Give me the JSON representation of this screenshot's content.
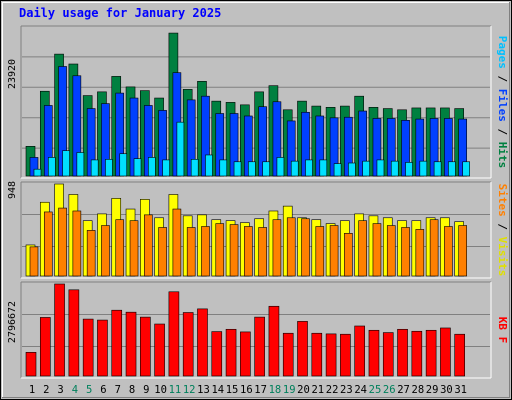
{
  "chart_data": [
    {
      "type": "bar",
      "title": "Daily usage for January 2025",
      "categories": [
        "1",
        "2",
        "3",
        "4",
        "5",
        "6",
        "7",
        "8",
        "9",
        "10",
        "11",
        "12",
        "13",
        "14",
        "15",
        "16",
        "17",
        "18",
        "19",
        "20",
        "21",
        "22",
        "23",
        "24",
        "25",
        "26",
        "27",
        "28",
        "29",
        "30",
        "31"
      ],
      "weekend_days": [
        "4",
        "5",
        "11",
        "12",
        "18",
        "19",
        "25",
        "26"
      ],
      "y_max_label": "23920",
      "ylim": [
        0,
        23920
      ],
      "legend": [
        "Pages",
        "Files",
        "Hits"
      ],
      "series": [
        {
          "name": "Hits",
          "color": "#008040",
          "values": [
            4800,
            13700,
            19700,
            18100,
            13000,
            13600,
            16100,
            14400,
            13800,
            12600,
            23100,
            14000,
            15300,
            12100,
            11900,
            11500,
            13600,
            14600,
            10700,
            12100,
            11300,
            11100,
            11300,
            12900,
            11100,
            10900,
            10700,
            11000,
            11000,
            11000,
            10900
          ]
        },
        {
          "name": "Files",
          "color": "#0040ff",
          "values": [
            3000,
            11400,
            17700,
            16200,
            10900,
            11700,
            13400,
            12600,
            11400,
            10600,
            16700,
            12300,
            12900,
            10100,
            10100,
            9700,
            11200,
            12000,
            8900,
            10300,
            9700,
            9400,
            9500,
            10500,
            9300,
            9300,
            9000,
            9200,
            9300,
            9300,
            9200
          ]
        },
        {
          "name": "Pages",
          "color": "#00e0ff",
          "values": [
            1100,
            3000,
            4100,
            3800,
            2600,
            2700,
            3600,
            2800,
            3000,
            2600,
            8700,
            2700,
            3400,
            2600,
            2300,
            2300,
            2300,
            3000,
            2400,
            2600,
            2600,
            2000,
            2100,
            2400,
            2600,
            2400,
            2200,
            2400,
            2300,
            2300,
            2300
          ]
        }
      ]
    },
    {
      "type": "bar",
      "categories": [
        "1",
        "2",
        "3",
        "4",
        "5",
        "6",
        "7",
        "8",
        "9",
        "10",
        "11",
        "12",
        "13",
        "14",
        "15",
        "16",
        "17",
        "18",
        "19",
        "20",
        "21",
        "22",
        "23",
        "24",
        "25",
        "26",
        "27",
        "28",
        "29",
        "30",
        "31"
      ],
      "y_max_label": "948",
      "ylim": [
        0,
        948
      ],
      "legend": [
        "Sites",
        "Visits"
      ],
      "series": [
        {
          "name": "Visits",
          "color": "#ffff00",
          "values": [
            320,
            760,
            948,
            840,
            570,
            640,
            800,
            690,
            790,
            600,
            840,
            620,
            630,
            580,
            570,
            550,
            590,
            670,
            720,
            600,
            580,
            540,
            570,
            640,
            620,
            600,
            570,
            570,
            600,
            600,
            560
          ]
        },
        {
          "name": "Sites",
          "color": "#ff8000",
          "values": [
            300,
            660,
            700,
            670,
            470,
            520,
            580,
            570,
            630,
            500,
            690,
            500,
            510,
            540,
            530,
            510,
            500,
            580,
            600,
            590,
            510,
            520,
            440,
            570,
            540,
            520,
            500,
            480,
            580,
            510,
            520
          ]
        }
      ]
    },
    {
      "type": "bar",
      "categories": [
        "1",
        "2",
        "3",
        "4",
        "5",
        "6",
        "7",
        "8",
        "9",
        "10",
        "11",
        "12",
        "13",
        "14",
        "15",
        "16",
        "17",
        "18",
        "19",
        "20",
        "21",
        "22",
        "23",
        "24",
        "25",
        "26",
        "27",
        "28",
        "29",
        "30",
        "31"
      ],
      "y_max_label": "2796672",
      "ylim": [
        0,
        2796672
      ],
      "legend": [
        "KB F"
      ],
      "series": [
        {
          "name": "KB F",
          "color": "#ff0000",
          "values": [
            720000,
            1780000,
            2796672,
            2620000,
            1730000,
            1700000,
            2000000,
            1940000,
            1790000,
            1580000,
            2560000,
            1930000,
            2040000,
            1350000,
            1420000,
            1340000,
            1790000,
            2120000,
            1300000,
            1660000,
            1300000,
            1280000,
            1270000,
            1520000,
            1390000,
            1320000,
            1420000,
            1360000,
            1390000,
            1460000,
            1270000
          ]
        }
      ]
    }
  ]
}
